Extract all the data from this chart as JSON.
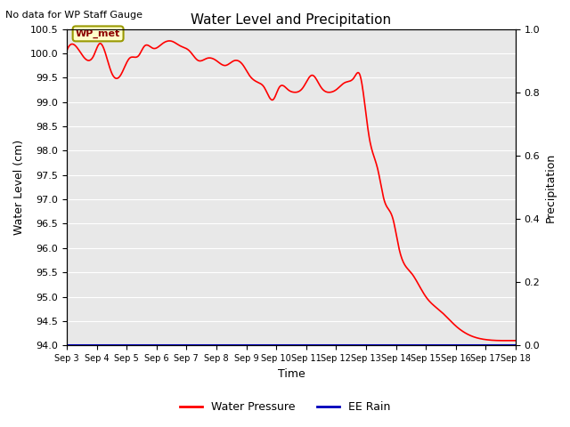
{
  "title": "Water Level and Precipitation",
  "top_left_text": "No data for WP Staff Gauge",
  "ylabel_left": "Water Level (cm)",
  "ylabel_right": "Precipitation",
  "xlabel": "Time",
  "ylim_left": [
    94.0,
    100.5
  ],
  "ylim_right": [
    0.0,
    1.0
  ],
  "yticks_left": [
    94.0,
    94.5,
    95.0,
    95.5,
    96.0,
    96.5,
    97.0,
    97.5,
    98.0,
    98.5,
    99.0,
    99.5,
    100.0,
    100.5
  ],
  "yticks_right": [
    0.0,
    0.2,
    0.4,
    0.6,
    0.8,
    1.0
  ],
  "xtick_labels": [
    "Sep 3",
    "Sep 4",
    "Sep 5",
    "Sep 6",
    "Sep 7",
    "Sep 8",
    "Sep 9",
    "Sep 10",
    "Sep 11",
    "Sep 12",
    "Sep 13",
    "Sep 14",
    "Sep 15",
    "Sep 16",
    "Sep 17",
    "Sep 18"
  ],
  "background_color": "#e8e8e8",
  "figure_background": "#ffffff",
  "line_color_wp": "#ff0000",
  "line_color_rain": "#0000bb",
  "legend_wp": "Water Pressure",
  "legend_rain": "EE Rain",
  "annotation_label": "WP_met",
  "xtick_positions": [
    0,
    1,
    2,
    3,
    4,
    5,
    6,
    7,
    8,
    9,
    10,
    11,
    12,
    13,
    14,
    15
  ],
  "wp_key_points_x": [
    0,
    0.3,
    0.6,
    0.9,
    1.1,
    1.5,
    1.8,
    2.1,
    2.4,
    2.6,
    2.9,
    3.2,
    3.5,
    3.8,
    4.1,
    4.4,
    4.7,
    5.0,
    5.3,
    5.6,
    5.9,
    6.1,
    6.4,
    6.6,
    6.9,
    7.1,
    7.4,
    7.6,
    7.9,
    8.2,
    8.5,
    8.8,
    9.0,
    9.3,
    9.6,
    9.8,
    10.1,
    10.4,
    10.6,
    10.9,
    11.1,
    11.5,
    12.0,
    12.5,
    13.0,
    13.5,
    14.0,
    14.5,
    15.0
  ],
  "wp_key_points_y": [
    100.05,
    100.15,
    99.9,
    99.95,
    100.2,
    99.6,
    99.55,
    99.9,
    99.95,
    100.15,
    100.1,
    100.2,
    100.25,
    100.15,
    100.05,
    99.85,
    99.9,
    99.85,
    99.75,
    99.85,
    99.75,
    99.55,
    99.4,
    99.3,
    99.05,
    99.3,
    99.25,
    99.2,
    99.3,
    99.55,
    99.3,
    99.2,
    99.25,
    99.4,
    99.5,
    99.55,
    98.3,
    97.6,
    97.0,
    96.6,
    96.0,
    95.5,
    95.0,
    94.7,
    94.4,
    94.2,
    94.12,
    94.1,
    94.1
  ]
}
